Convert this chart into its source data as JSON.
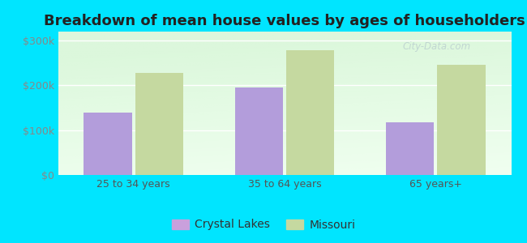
{
  "title": "Breakdown of mean house values by ages of householders",
  "categories": [
    "25 to 34 years",
    "35 to 64 years",
    "65 years+"
  ],
  "crystal_lakes": [
    140000,
    195000,
    117000
  ],
  "missouri": [
    228000,
    278000,
    245000
  ],
  "bar_color_crystal": "#b39ddb",
  "bar_color_missouri": "#c5d9a0",
  "ylim": [
    0,
    320000
  ],
  "yticks": [
    0,
    100000,
    200000,
    300000
  ],
  "background_outer": "#00e5ff",
  "background_inner": "#e8f5e9",
  "legend_label_1": "Crystal Lakes",
  "legend_label_2": "Missouri",
  "legend_marker_1": "#c9a0dc",
  "legend_marker_2": "#c5d9a0",
  "bar_width": 0.32,
  "title_fontsize": 13,
  "tick_fontsize": 9,
  "legend_fontsize": 10,
  "watermark_text": "City-Data.com",
  "watermark_color": "#aabbc8",
  "watermark_alpha": 0.55
}
